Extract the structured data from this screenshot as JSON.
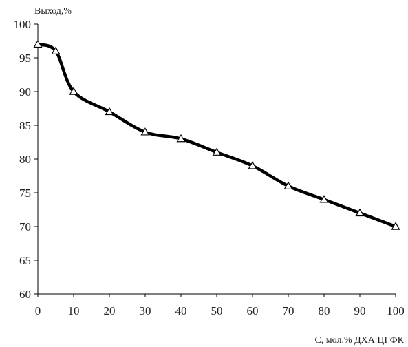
{
  "chart_data": {
    "type": "line",
    "xlabel": "С, мол.% ДХА ЦГФК",
    "ylabel": "Выход,%",
    "xlim": [
      0,
      100
    ],
    "ylim": [
      60,
      100
    ],
    "x_ticks": [
      0,
      10,
      20,
      30,
      40,
      50,
      60,
      70,
      80,
      90,
      100
    ],
    "y_ticks": [
      60,
      65,
      70,
      75,
      80,
      85,
      90,
      95,
      100
    ],
    "grid": false,
    "marker": "triangle-open",
    "line_color": "#000000",
    "series": [
      {
        "x": [
          0,
          5,
          10,
          20,
          30,
          40,
          50,
          60,
          70,
          80,
          90,
          100
        ],
        "y": [
          97,
          96,
          90,
          87,
          84,
          83,
          81,
          79,
          76,
          74,
          72,
          70
        ]
      }
    ]
  }
}
